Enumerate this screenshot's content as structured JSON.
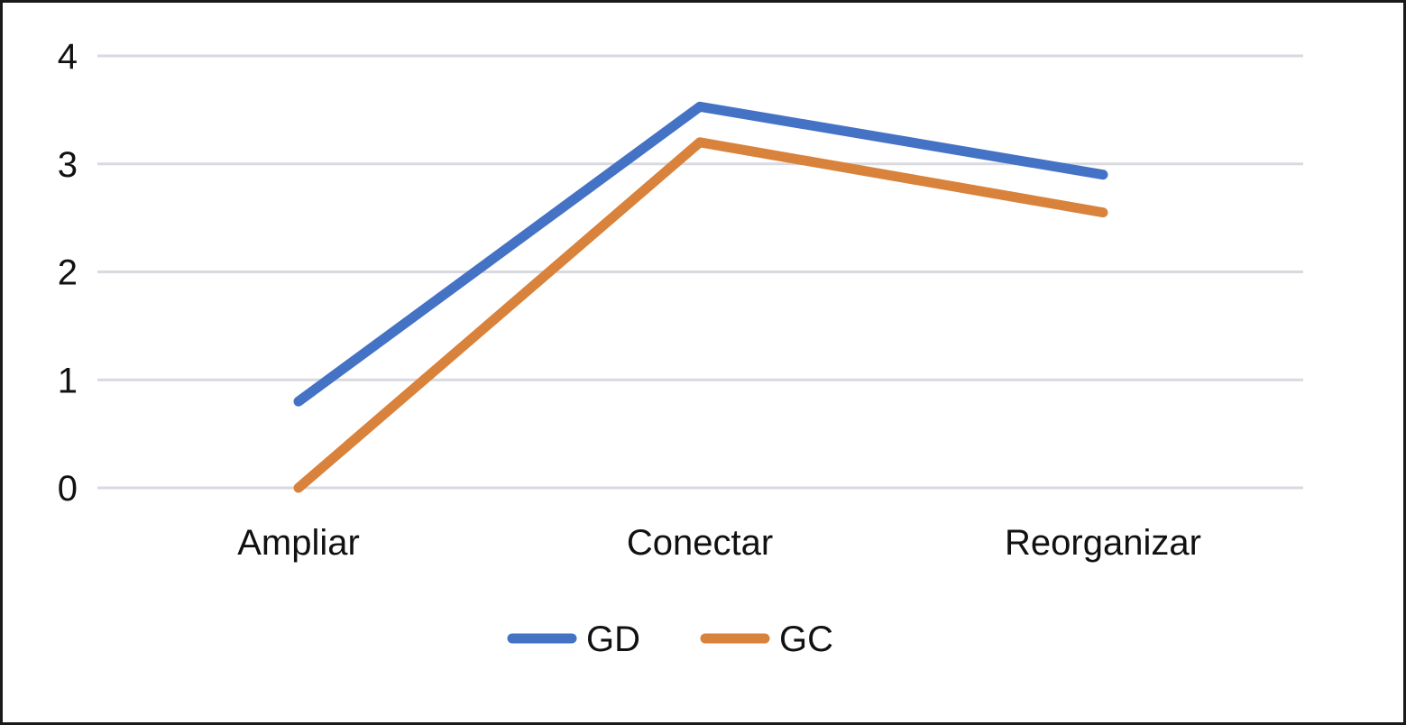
{
  "chart_data": {
    "type": "line",
    "categories": [
      "Ampliar",
      "Conectar",
      "Reorganizar"
    ],
    "series": [
      {
        "name": "GD",
        "values": [
          0.8,
          3.53,
          2.9
        ],
        "color": "#4472C4"
      },
      {
        "name": "GC",
        "values": [
          0.0,
          3.2,
          2.55
        ],
        "color": "#D9823B"
      }
    ],
    "ylim": [
      0,
      4
    ],
    "yticks": [
      "0",
      "1",
      "2",
      "3",
      "4"
    ],
    "grid": true,
    "legend_position": "bottom"
  }
}
